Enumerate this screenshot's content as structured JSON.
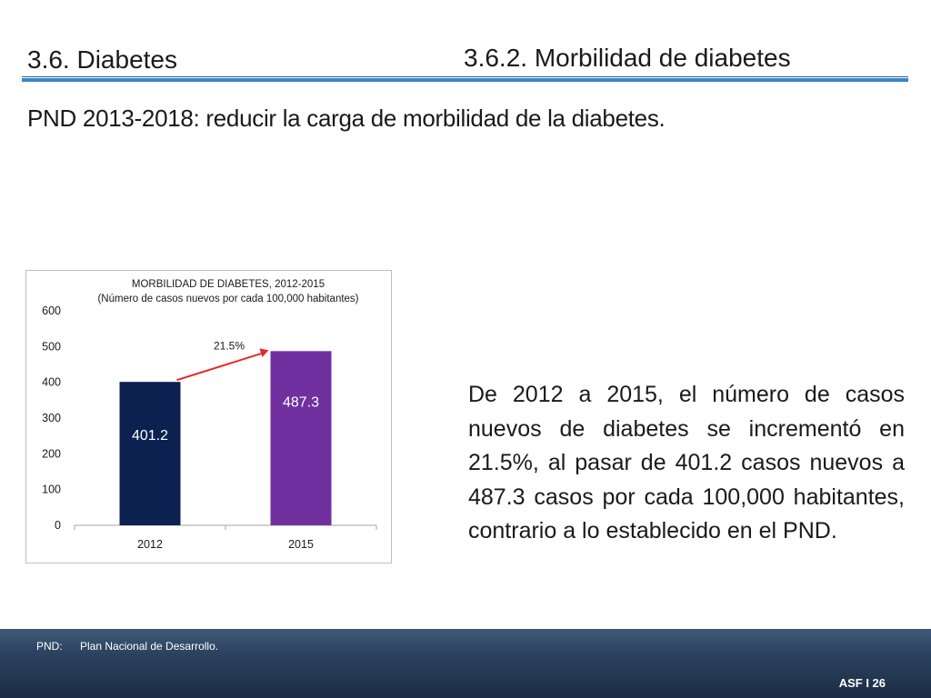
{
  "header": {
    "section": "3.6. Diabetes",
    "subsection": "3.6.2. Morbilidad de diabetes"
  },
  "subtitle": "PND 2013-2018: reducir la carga de morbilidad de la diabetes.",
  "body_text": "De 2012 a 2015, el número de casos nuevos de diabetes se incrementó en 21.5%, al pasar de 401.2 casos nuevos a 487.3 casos por cada 100,000 habitantes, contrario a lo establecido en el PND.",
  "footer": {
    "abbreviation": "PND:",
    "definition": "Plan Nacional de Desarrollo.",
    "page": "ASF I 26"
  },
  "chart_data": {
    "type": "bar",
    "title": "MORBILIDAD DE DIABETES, 2012-2015",
    "subtitle": "(Número de casos nuevos por cada 100,000 habitantes)",
    "categories": [
      "2012",
      "2015"
    ],
    "values": [
      401.2,
      487.3
    ],
    "data_labels": [
      "401.2",
      "487.3"
    ],
    "bar_colors": [
      "#0d2150",
      "#7030a0"
    ],
    "ylim": [
      0,
      600
    ],
    "yticks": [
      0,
      100,
      200,
      300,
      400,
      500,
      600
    ],
    "annotation": {
      "text": "21.5%",
      "arrow_color": "#e8262a"
    },
    "grid": false,
    "legend": "none"
  }
}
